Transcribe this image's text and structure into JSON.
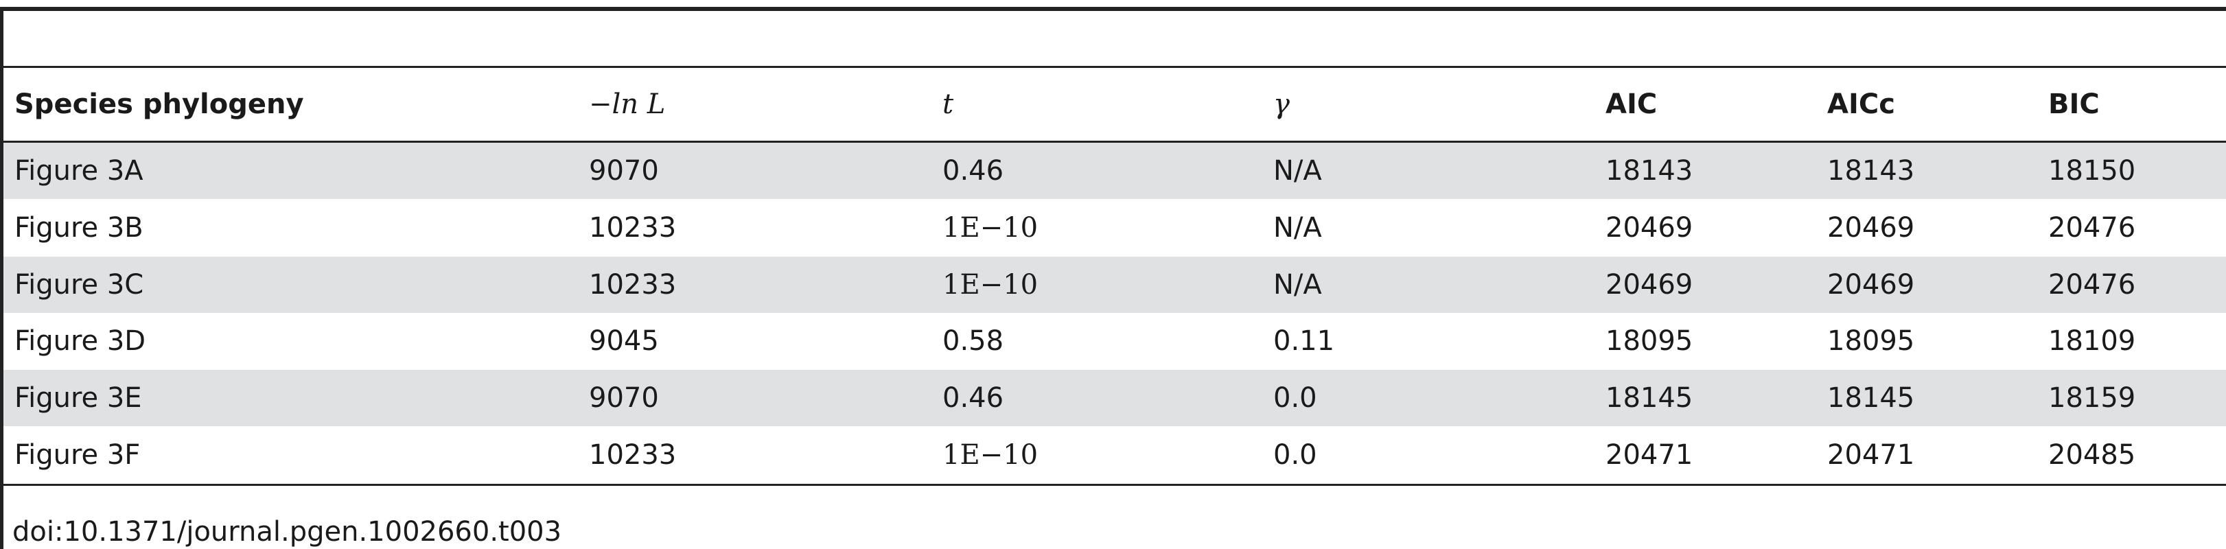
{
  "table": {
    "columns": [
      "Species phylogeny",
      "−ln L",
      "t",
      "γ",
      "AIC",
      "AICc",
      "BIC"
    ],
    "rows": [
      [
        "Figure 3A",
        "9070",
        "0.46",
        "N/A",
        "18143",
        "18143",
        "18150"
      ],
      [
        "Figure 3B",
        "10233",
        "1E−10",
        "N/A",
        "20469",
        "20469",
        "20476"
      ],
      [
        "Figure 3C",
        "10233",
        "1E−10",
        "N/A",
        "20469",
        "20469",
        "20476"
      ],
      [
        "Figure 3D",
        "9045",
        "0.58",
        "0.11",
        "18095",
        "18095",
        "18109"
      ],
      [
        "Figure 3E",
        "9070",
        "0.46",
        "0.0",
        "18145",
        "18145",
        "18159"
      ],
      [
        "Figure 3F",
        "10233",
        "1E−10",
        "0.0",
        "20471",
        "20471",
        "20485"
      ]
    ]
  },
  "footer": {
    "doi": "doi:10.1371/journal.pgen.1002660.t003"
  }
}
